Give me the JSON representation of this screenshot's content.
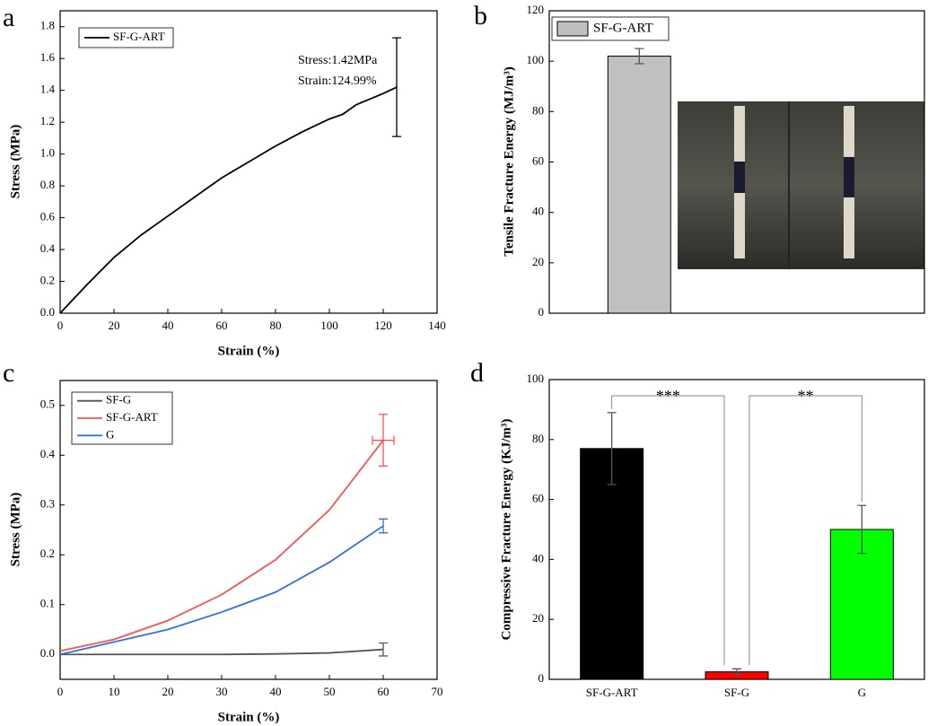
{
  "chart_data": [
    {
      "type": "line",
      "panel_label": "a",
      "x_label": "Strain (%)",
      "y_label": "Stress (MPa)",
      "x": [
        0,
        10,
        20,
        30,
        40,
        50,
        60,
        70,
        80,
        90,
        100,
        105,
        110,
        120,
        125
      ],
      "series": [
        {
          "name": "SF-G-ART",
          "color": "#000000",
          "values": [
            0,
            0.18,
            0.35,
            0.49,
            0.61,
            0.73,
            0.85,
            0.95,
            1.05,
            1.14,
            1.22,
            1.25,
            1.31,
            1.38,
            1.42
          ],
          "errors": [
            null,
            null,
            null,
            null,
            null,
            null,
            null,
            null,
            null,
            null,
            null,
            null,
            null,
            null,
            0.31
          ]
        }
      ],
      "xlim": [
        0,
        140
      ],
      "ylim": [
        0,
        1.9
      ],
      "xticks": [
        0,
        20,
        40,
        60,
        80,
        100,
        120,
        140
      ],
      "yticks": [
        {
          "value": 0,
          "label": "0.0"
        },
        0.2,
        0.4,
        0.6,
        0.8,
        {
          "value": 1,
          "label": "1.0"
        },
        1.2,
        1.4,
        1.6,
        1.8
      ],
      "annotations": [
        "Stress:1.42MPa",
        "Strain:124.99%"
      ]
    },
    {
      "type": "bar",
      "panel_label": "b",
      "y_label": "Tensile Fracture Energy (MJ/m³)",
      "categories": [
        null
      ],
      "series": [
        {
          "name": "SF-G-ART",
          "color": "#c0c0c0",
          "values": [
            102
          ],
          "errors": [
            3
          ]
        }
      ],
      "ylim": [
        0,
        120
      ],
      "yticks": [
        0,
        20,
        40,
        60,
        80,
        100,
        120
      ]
    },
    {
      "type": "line",
      "panel_label": "c",
      "x_label": "Strain (%)",
      "y_label": "Stress (MPa)",
      "x": [
        0,
        10,
        20,
        30,
        40,
        50,
        60
      ],
      "series": [
        {
          "name": "SF-G",
          "color": "#555555",
          "values": [
            0,
            0,
            0,
            0,
            0.001,
            0.003,
            0.01
          ],
          "errors": [
            null,
            null,
            null,
            null,
            null,
            null,
            0.013
          ]
        },
        {
          "name": "SF-G-ART",
          "color": "#ff5050",
          "values": [
            0.007,
            0.03,
            0.068,
            0.12,
            0.19,
            0.29,
            0.43
          ],
          "errors": [
            null,
            null,
            null,
            null,
            null,
            null,
            0.052
          ],
          "x_errors": [
            null,
            null,
            null,
            null,
            null,
            null,
            2
          ]
        },
        {
          "name": "G",
          "color": "#3070e0",
          "values": [
            0,
            0.025,
            0.05,
            0.085,
            0.125,
            0.185,
            0.258
          ],
          "errors": [
            null,
            null,
            null,
            null,
            null,
            null,
            0.014
          ]
        }
      ],
      "xlim": [
        0,
        70
      ],
      "ylim": [
        -0.05,
        0.55
      ],
      "xticks": [
        0,
        10,
        20,
        30,
        40,
        50,
        60,
        70
      ],
      "yticks": [
        {
          "value": 0,
          "label": "0.0"
        },
        0.1,
        0.2,
        0.3,
        0.4,
        0.5
      ]
    },
    {
      "type": "bar",
      "panel_label": "d",
      "y_label": "Compressive Fracture Energy (KJ/m³)",
      "categories": [
        "SF-G-ART",
        "SF-G",
        "G"
      ],
      "series": [
        {
          "colors": [
            "#000000",
            "#ff0000",
            "#00ff00"
          ],
          "values": [
            77,
            2.5,
            50
          ],
          "errors": [
            12,
            1,
            8
          ]
        }
      ],
      "ylim": [
        0,
        100
      ],
      "yticks": [
        0,
        20,
        40,
        60,
        80,
        100
      ],
      "annotations": [
        "***",
        "**"
      ]
    }
  ]
}
